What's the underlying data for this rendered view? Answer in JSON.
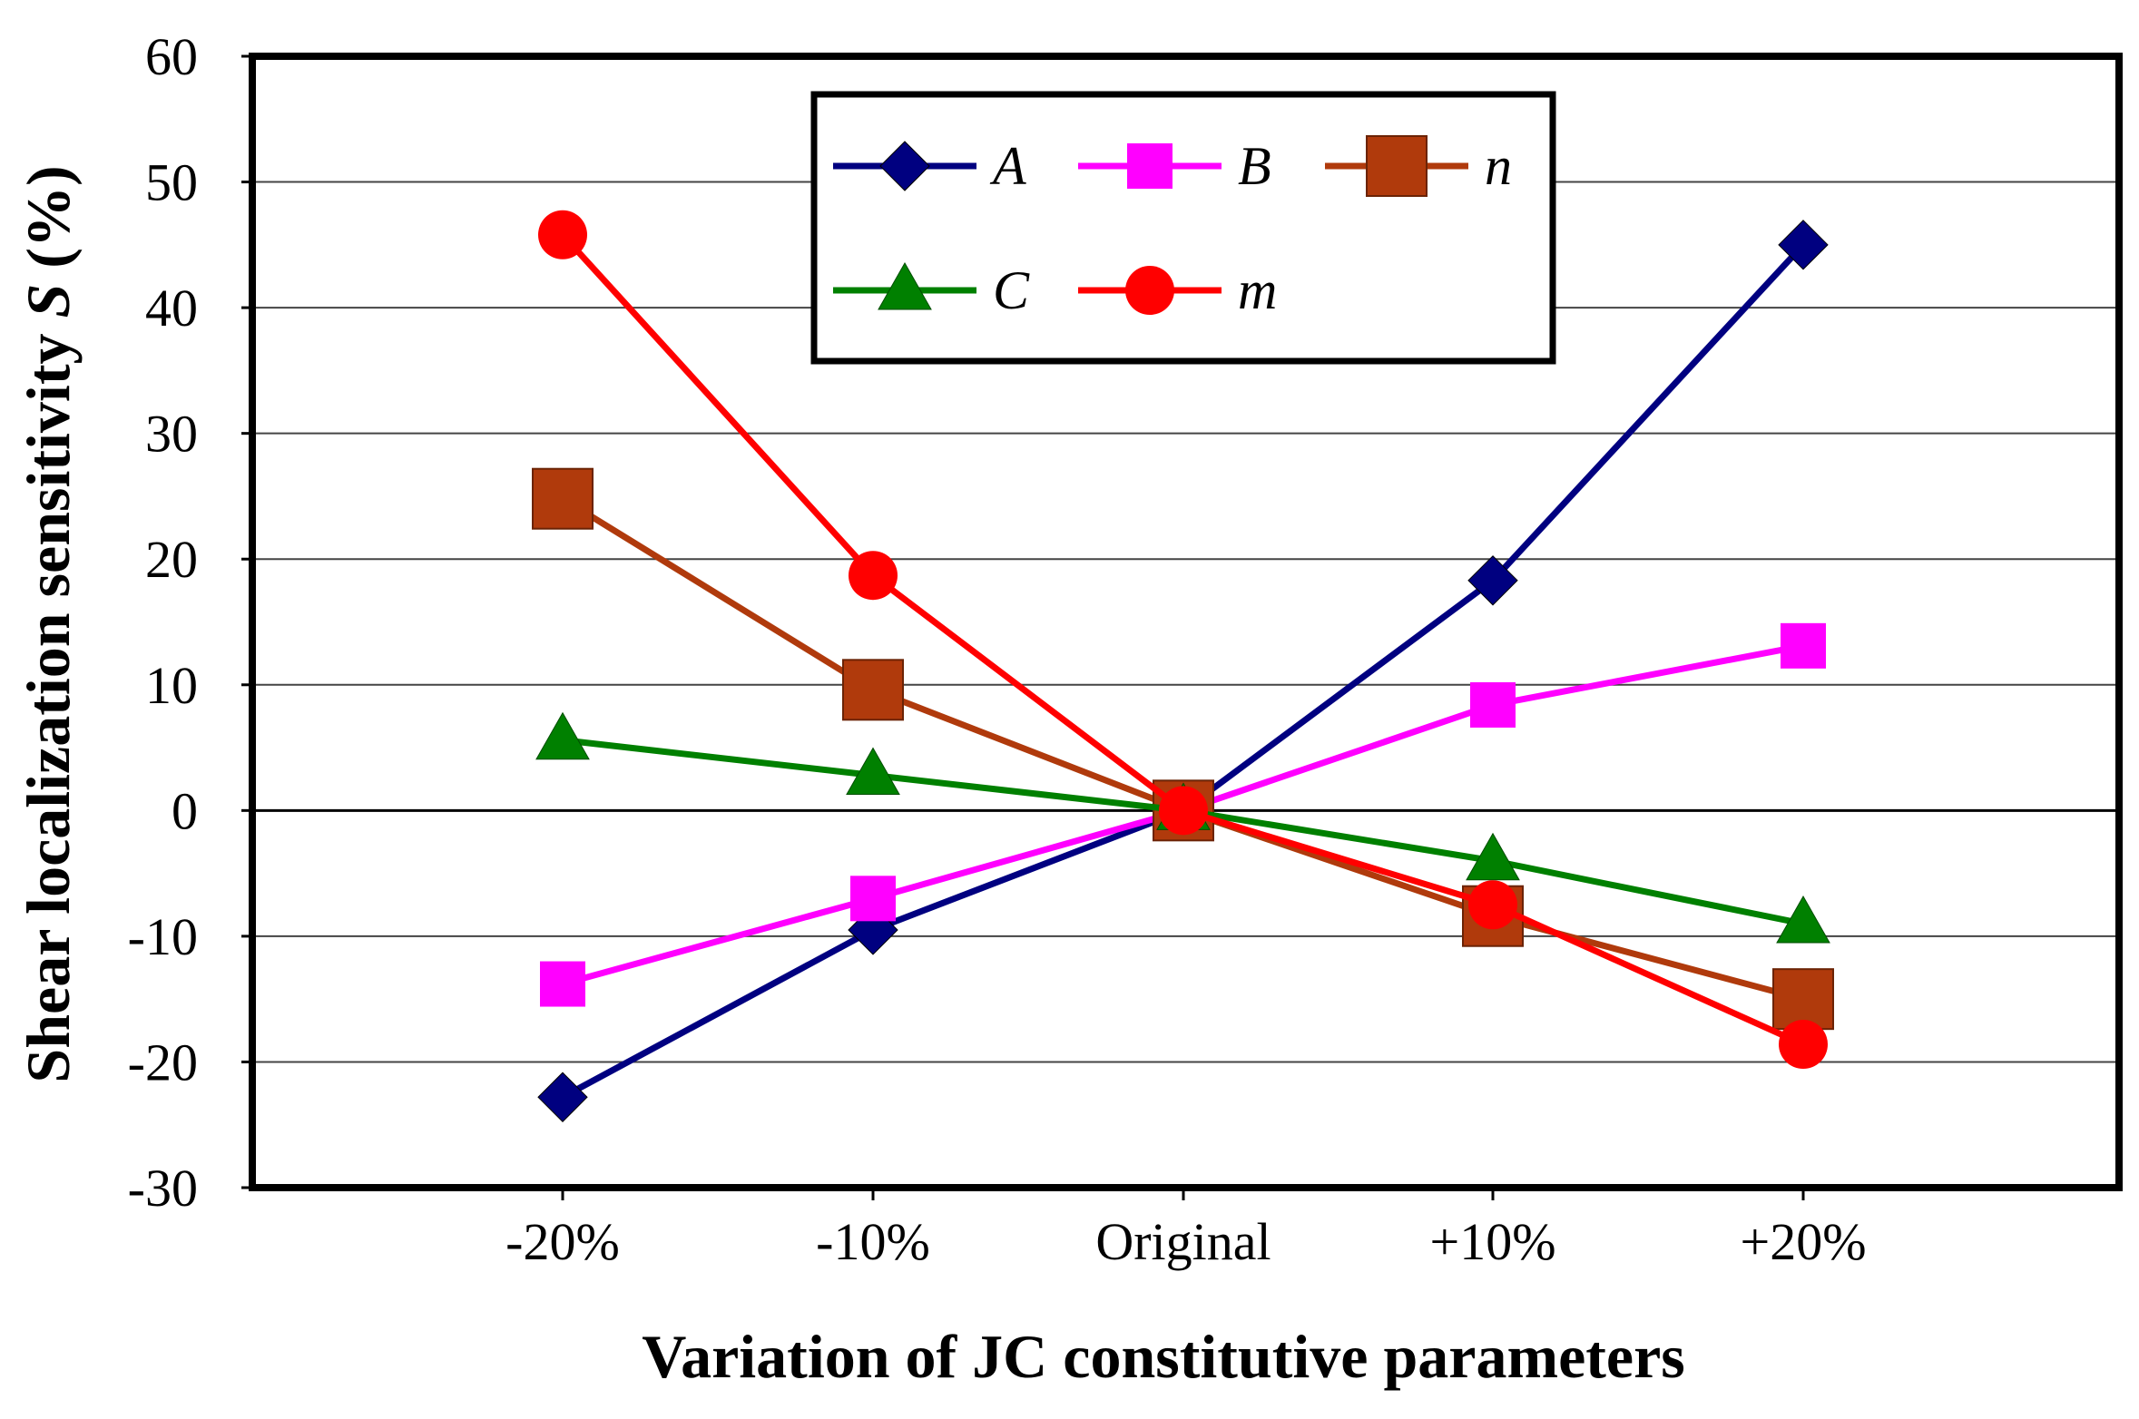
{
  "chart_data": {
    "type": "line",
    "title": "",
    "xlabel": "Variation of JC constitutive parameters",
    "ylabel_prefix": "Shear localization sensitivity ",
    "ylabel_symbol": "S",
    "ylabel_suffix": " (%)",
    "categories": [
      "-20%",
      "-10%",
      "Original",
      "+10%",
      "+20%"
    ],
    "ylim": [
      -30,
      60
    ],
    "yticks": [
      "60",
      "50",
      "40",
      "30",
      "20",
      "10",
      "0",
      "-10",
      "-20",
      "-30"
    ],
    "yticks_values": [
      60,
      50,
      40,
      30,
      20,
      10,
      0,
      -10,
      -20,
      -30
    ],
    "grid": "horizontal",
    "legend_position": "top-center",
    "series": [
      {
        "name": "A",
        "color": "#000080",
        "marker": "diamond",
        "values": [
          -22.8,
          -9.5,
          0,
          18.3,
          45
        ]
      },
      {
        "name": "B",
        "color": "#FF00FF",
        "marker": "square",
        "values": [
          -13.8,
          -7,
          0,
          8.4,
          13.1
        ]
      },
      {
        "name": "n",
        "color": "#B03A0C",
        "marker": "square-large",
        "values": [
          24.8,
          9.6,
          0,
          -8.4,
          -15
        ]
      },
      {
        "name": "C",
        "color": "#008000",
        "marker": "triangle",
        "values": [
          5.6,
          2.8,
          0,
          -4,
          -9
        ]
      },
      {
        "name": "m",
        "color": "#FF0000",
        "marker": "circle",
        "values": [
          45.8,
          18.7,
          0,
          -7.5,
          -18.6
        ]
      }
    ]
  }
}
